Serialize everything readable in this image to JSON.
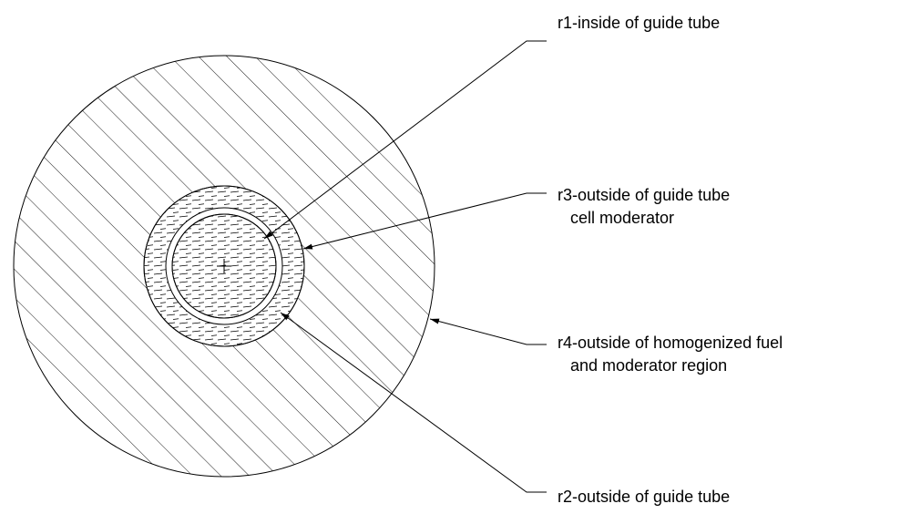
{
  "labels": [
    {
      "lines": [
        "r1-inside of guide tube"
      ]
    },
    {
      "lines": [
        "r3-outside of guide tube",
        "cell moderator"
      ]
    },
    {
      "lines": [
        "r4-outside of homogenized fuel",
        "and moderator region"
      ]
    },
    {
      "lines": [
        "r2-outside of guide tube"
      ]
    }
  ]
}
